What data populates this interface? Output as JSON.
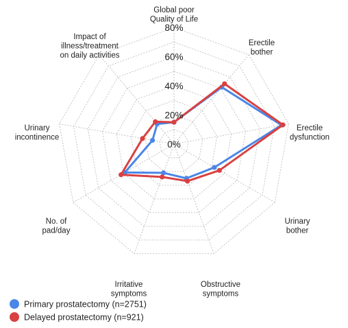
{
  "chart_data": {
    "type": "radar",
    "axes": [
      [
        "Global poor",
        "Quality of Life"
      ],
      [
        "Erectile",
        "bother"
      ],
      [
        "Erectile",
        "dysfunction"
      ],
      [
        "Urinary",
        "bother"
      ],
      [
        "Obstructive",
        "symptoms"
      ],
      [
        "Irritative",
        "symptoms"
      ],
      [
        "No. of",
        "pad/day"
      ],
      [
        "Urinary",
        "incontinence"
      ],
      [
        "Impact of",
        "illness/treatment",
        "on daily activities"
      ]
    ],
    "ticks": [
      "0%",
      "20%",
      "40%",
      "60%",
      "80%"
    ],
    "tick_values": [
      0,
      20,
      40,
      60,
      80
    ],
    "rmax": 80,
    "rings": [
      0,
      10,
      20,
      30,
      40,
      50,
      60,
      70,
      80
    ],
    "grid": true,
    "legend_position": "bottom-left",
    "series": [
      {
        "name": "Primary prostatectomy (n=2751)",
        "color": "#4a86e8",
        "values": [
          15,
          51,
          75,
          32,
          25,
          21,
          39,
          15,
          18
        ]
      },
      {
        "name": "Delayed prostatectomy (n=921)",
        "color": "#d94040",
        "values": [
          15,
          54,
          76,
          36,
          27,
          24,
          42,
          22,
          20
        ]
      }
    ]
  }
}
